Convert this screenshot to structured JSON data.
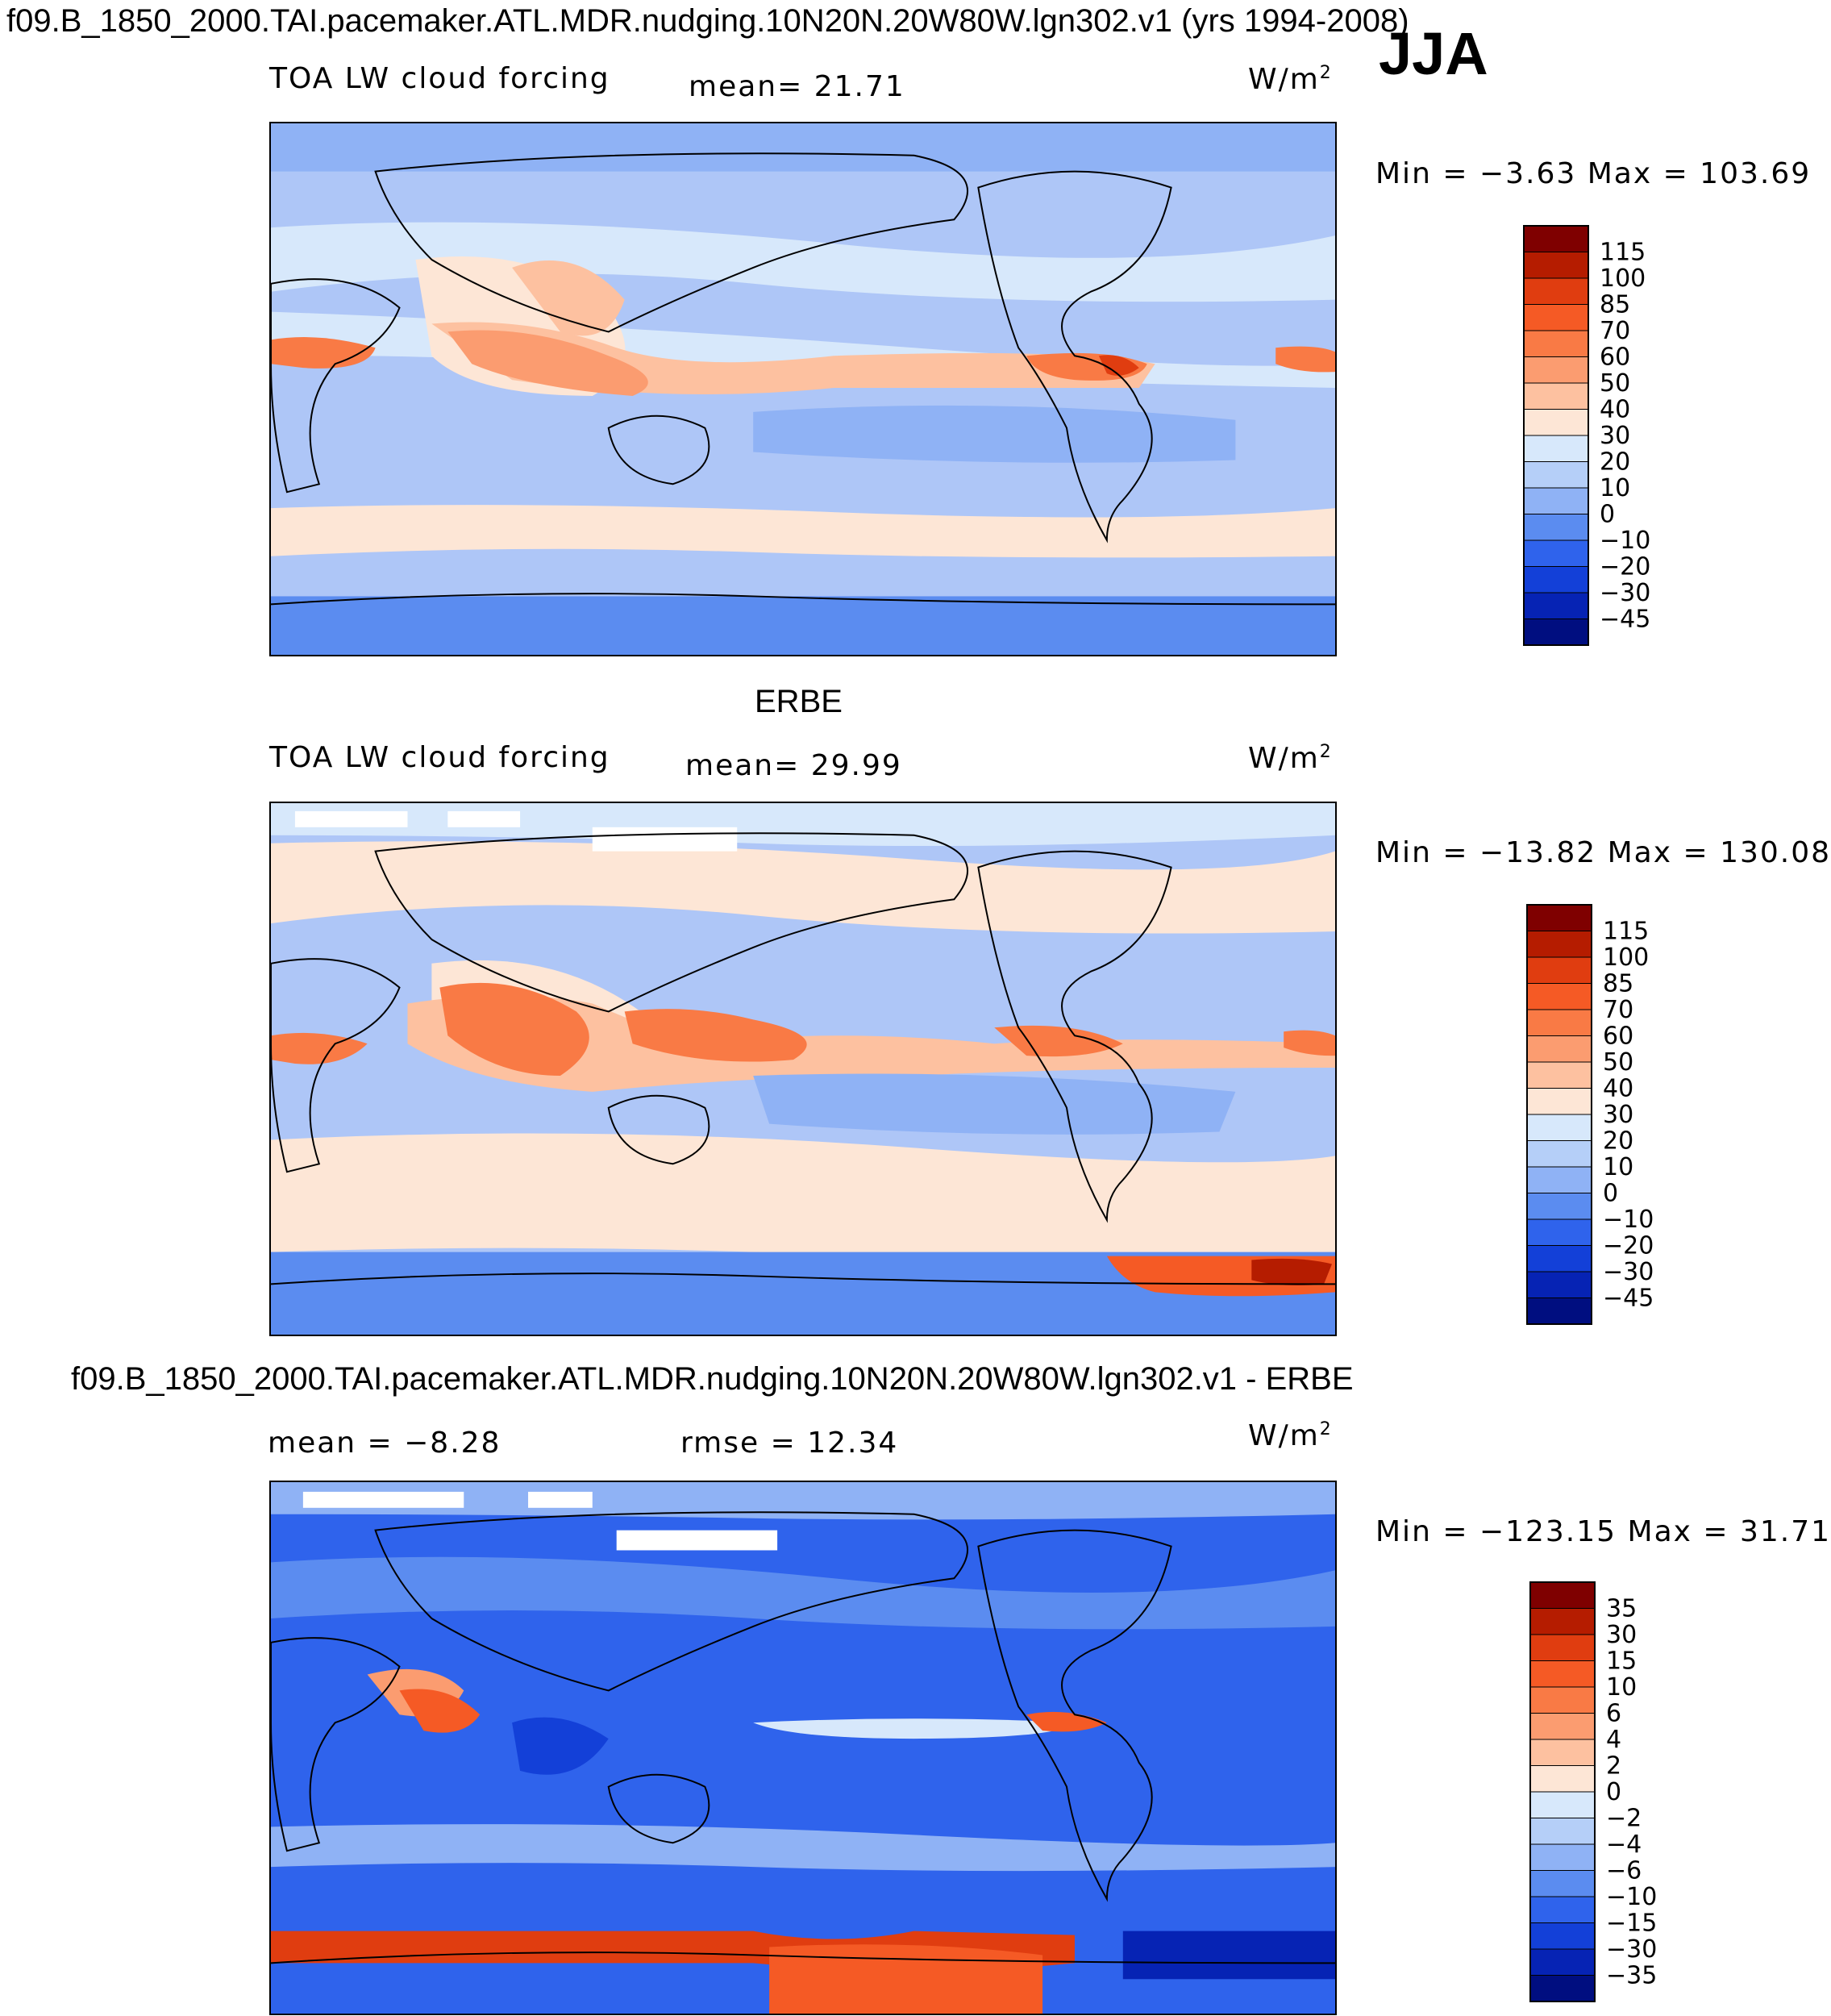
{
  "header": {
    "title": "f09.B_1850_2000.TAI.pacemaker.ATL.MDR.nudging.10N20N.20W80W.lgn302.v1 (yrs 1994-2008)",
    "season": "JJA"
  },
  "panels": [
    {
      "variable": "TOA LW cloud forcing",
      "mean_text": "mean=   21.71",
      "units": "W/m",
      "units_sup": "2",
      "minmax": "Min =   −3.63 Max = 103.69",
      "colorbar": {
        "levels": [
          "115",
          "100",
          "85",
          "70",
          "60",
          "50",
          "40",
          "30",
          "20",
          "10",
          "0",
          "−10",
          "−20",
          "−30",
          "−45"
        ],
        "colors": [
          "#7f0000",
          "#b51c00",
          "#e03d10",
          "#f55a25",
          "#f97a45",
          "#fb9c70",
          "#fdc1a0",
          "#fde6d6",
          "#d7e8fb",
          "#b5cff8",
          "#8fb2f5",
          "#5b8cf0",
          "#2f63ec",
          "#1340d8",
          "#0623b4",
          "#000e80"
        ]
      }
    },
    {
      "subtitle": "ERBE",
      "variable": "TOA LW cloud forcing",
      "mean_text": "mean=   29.99",
      "units": "W/m",
      "units_sup": "2",
      "minmax": "Min = −13.82 Max = 130.08",
      "colorbar": {
        "levels": [
          "115",
          "100",
          "85",
          "70",
          "60",
          "50",
          "40",
          "30",
          "20",
          "10",
          "0",
          "−10",
          "−20",
          "−30",
          "−45"
        ],
        "colors": [
          "#7f0000",
          "#b51c00",
          "#e03d10",
          "#f55a25",
          "#f97a45",
          "#fb9c70",
          "#fdc1a0",
          "#fde6d6",
          "#d7e8fb",
          "#b5cff8",
          "#8fb2f5",
          "#5b8cf0",
          "#2f63ec",
          "#1340d8",
          "#0623b4",
          "#000e80"
        ]
      }
    },
    {
      "subtitle": "f09.B_1850_2000.TAI.pacemaker.ATL.MDR.nudging.10N20N.20W80W.lgn302.v1 - ERBE",
      "mean_text": "mean =   −8.28",
      "rmse_text": "rmse =   12.34",
      "units": "W/m",
      "units_sup": "2",
      "minmax": "Min = −123.15 Max =   31.71",
      "colorbar": {
        "levels": [
          "35",
          "30",
          "15",
          "10",
          "6",
          "4",
          "2",
          "0",
          "−2",
          "−4",
          "−6",
          "−10",
          "−15",
          "−30",
          "−35"
        ],
        "colors": [
          "#7f0000",
          "#b51c00",
          "#e03d10",
          "#f55a25",
          "#f97a45",
          "#fb9c70",
          "#fdc1a0",
          "#fde6d6",
          "#d7e8fb",
          "#b5cff8",
          "#8fb2f5",
          "#5b8cf0",
          "#2f63ec",
          "#1340d8",
          "#0623b4",
          "#000e80"
        ]
      }
    }
  ]
}
